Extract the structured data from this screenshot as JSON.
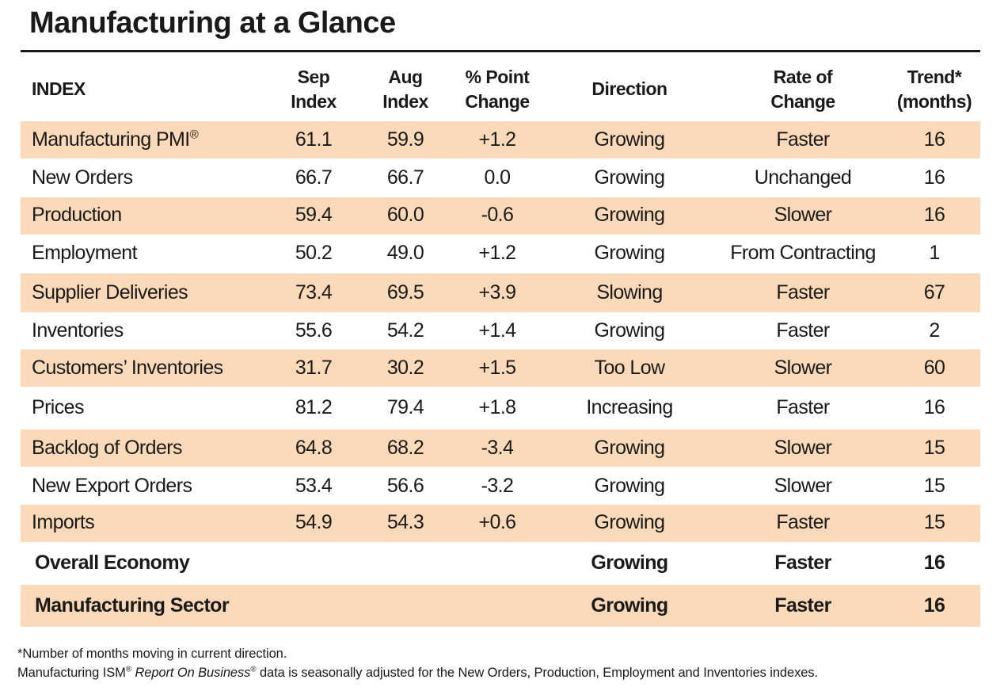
{
  "title": "Manufacturing at a Glance",
  "header": {
    "index": "INDEX",
    "sep_1": "Sep",
    "sep_2": "Index",
    "aug_1": "Aug",
    "aug_2": "Index",
    "pct_1": "% Point",
    "pct_2": "Change",
    "direction": "Direction",
    "rate_1": "Rate of",
    "rate_2": "Change",
    "trend_1": "Trend*",
    "trend_2": "(months)"
  },
  "rows": [
    {
      "index": "Manufacturing PMI",
      "index_sup": "®",
      "sep": "61.1",
      "aug": "59.9",
      "change": "+1.2",
      "direction": "Growing",
      "rate": "Faster",
      "trend": "16"
    },
    {
      "index": "New Orders",
      "sep": "66.7",
      "aug": "66.7",
      "change": "0.0",
      "direction": "Growing",
      "rate": "Unchanged",
      "trend": "16"
    },
    {
      "index": "Production",
      "sep": "59.4",
      "aug": "60.0",
      "change": "-0.6",
      "direction": "Growing",
      "rate": "Slower",
      "trend": "16"
    },
    {
      "index": "Employment",
      "sep": "50.2",
      "aug": "49.0",
      "change": "+1.2",
      "direction": "Growing",
      "rate": "From Contracting",
      "trend": "1"
    },
    {
      "index": "Supplier Deliveries",
      "sep": "73.4",
      "aug": "69.5",
      "change": "+3.9",
      "direction": "Slowing",
      "rate": "Faster",
      "trend": "67"
    },
    {
      "index": "Inventories",
      "sep": "55.6",
      "aug": "54.2",
      "change": "+1.4",
      "direction": "Growing",
      "rate": "Faster",
      "trend": "2"
    },
    {
      "index": "Customers’ Inventories",
      "sep": "31.7",
      "aug": "30.2",
      "change": "+1.5",
      "direction": "Too Low",
      "rate": "Slower",
      "trend": "60"
    },
    {
      "index": "Prices",
      "sep": "81.2",
      "aug": "79.4",
      "change": "+1.8",
      "direction": "Increasing",
      "rate": "Faster",
      "trend": "16"
    },
    {
      "index": "Backlog of Orders",
      "sep": "64.8",
      "aug": "68.2",
      "change": "-3.4",
      "direction": "Growing",
      "rate": "Slower",
      "trend": "15"
    },
    {
      "index": "New Export Orders",
      "sep": "53.4",
      "aug": "56.6",
      "change": "-3.2",
      "direction": "Growing",
      "rate": "Slower",
      "trend": "15"
    },
    {
      "index": "Imports",
      "sep": "54.9",
      "aug": "54.3",
      "change": "+0.6",
      "direction": "Growing",
      "rate": "Faster",
      "trend": "15"
    }
  ],
  "summary": [
    {
      "index": "Overall Economy",
      "direction": "Growing",
      "rate": "Faster",
      "trend": "16"
    },
    {
      "index": "Manufacturing Sector",
      "direction": "Growing",
      "rate": "Faster",
      "trend": "16"
    }
  ],
  "footnotes": {
    "line1": "*Number of months moving in current direction.",
    "line2_a": "Manufacturing ISM",
    "line2_reg1": "®",
    "line2_b": " Report On Business",
    "line2_reg2": "®",
    "line2_c": " data is seasonally adjusted for the New Orders, Production, Employment and Inventories indexes."
  },
  "colors": {
    "band": "#fcd9b9",
    "text": "#1a1a1a"
  }
}
